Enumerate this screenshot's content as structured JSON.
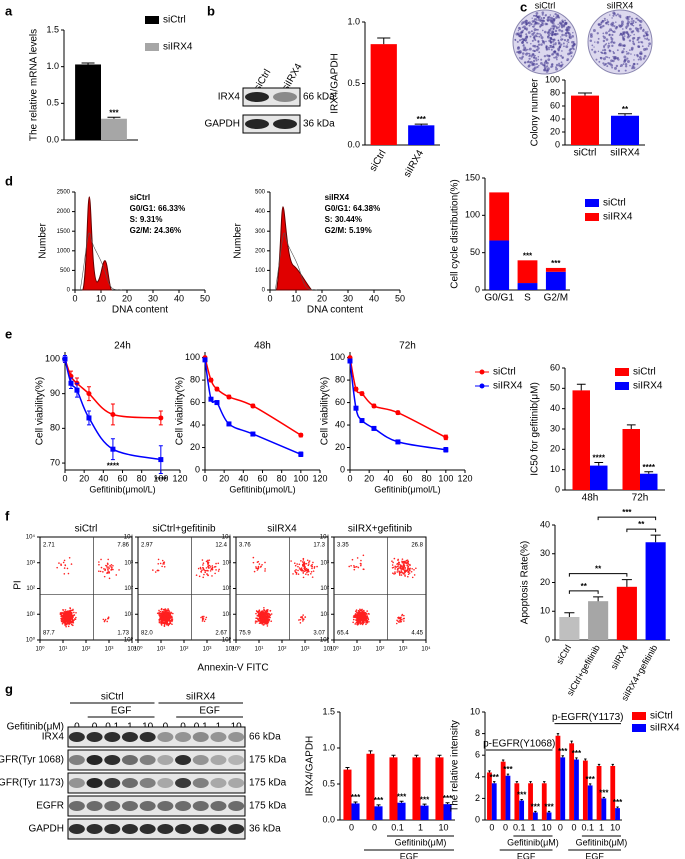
{
  "figure": {
    "panel_letters": [
      "a",
      "b",
      "c",
      "d",
      "e",
      "f",
      "g"
    ],
    "blot_b": {
      "lanes": [
        "siCtrl",
        "siIRX4"
      ],
      "rows": [
        {
          "name": "IRX4",
          "size": "66 kDa"
        },
        {
          "name": "GAPDH",
          "size": "36 kDa"
        }
      ]
    },
    "dishes": [
      "siCtrl",
      "siIRX4"
    ],
    "flow_axes": {
      "y": "PI",
      "x": "Annexin-V FITC"
    },
    "blot_g": {
      "groups": [
        "siCtrl",
        "siIRX4"
      ],
      "treatment": "EGF",
      "dose_label": "Gefitinib(μM)",
      "doses": [
        "0",
        "0",
        "0.1",
        "1",
        "10",
        "0",
        "0",
        "0.1",
        "1",
        "10"
      ],
      "rows": [
        {
          "name": "IRX4",
          "size": "66 kDa"
        },
        {
          "name": "p-EGFR(Tyr 1068)",
          "size": "175 kDa"
        },
        {
          "name": "p-EGFR(Tyr 1173)",
          "size": "175 kDa"
        },
        {
          "name": "EGFR",
          "size": "175 kDa"
        },
        {
          "name": "GAPDH",
          "size": "36 kDa"
        }
      ]
    }
  },
  "chart_data": [
    {
      "type": "bar",
      "ylabel": "The relative mRNA levels",
      "categories": [
        null
      ],
      "ylim": [
        0,
        1.5
      ],
      "yticks": [
        {
          "value": 0,
          "label": "0.0"
        },
        0.5,
        {
          "value": 1,
          "label": "1.0"
        },
        1.5
      ],
      "series": [
        {
          "name": "siCtrl",
          "color": "#000000",
          "values": [
            1.03
          ],
          "errors": [
            0.02
          ]
        },
        {
          "name": "siIRX4",
          "color": "#a6a6a6",
          "values": [
            0.29
          ],
          "errors": [
            0.02
          ],
          "annotations": [
            "***"
          ]
        }
      ]
    },
    {
      "type": "bar",
      "ylabel": "IRX4/GAPDH",
      "categories": [
        "siCtrl",
        "siIRX4"
      ],
      "ylim": [
        0,
        1
      ],
      "yticks": [
        {
          "value": 0,
          "label": "0.0"
        },
        0.5,
        {
          "value": 1,
          "label": "1.0"
        }
      ],
      "series": [
        {
          "colors": [
            "#ff0000",
            "#0000ff"
          ],
          "values": [
            0.82,
            0.16
          ],
          "errors": [
            0.05,
            0.01
          ],
          "annotations": [
            null,
            "***"
          ]
        }
      ]
    },
    {
      "type": "bar",
      "ylabel": "Colony number",
      "categories": [
        "siCtrl",
        "siIRX4"
      ],
      "ylim": [
        0,
        100
      ],
      "yticks": [
        0,
        20,
        40,
        60,
        80,
        100
      ],
      "series": [
        {
          "colors": [
            "#ff0000",
            "#0000ff"
          ],
          "values": [
            76,
            45
          ],
          "errors": [
            4,
            3
          ],
          "annotations": [
            null,
            "**"
          ]
        }
      ]
    },
    {
      "type": "flow_histogram",
      "ylabel": "Number",
      "xlabel": "DNA content",
      "xlim": [
        0,
        50
      ],
      "xticks": [
        0,
        10,
        20,
        30,
        40,
        50
      ],
      "ylim": [
        0,
        2500
      ],
      "yticks": [
        0,
        500,
        1000,
        1500,
        2000,
        2500
      ],
      "annotations": [
        "siCtrl",
        "G0/G1: 66.33%",
        "S: 9.31%",
        "G2/M: 24.36%"
      ]
    },
    {
      "type": "flow_histogram",
      "ylabel": "Number",
      "xlabel": "DNA content",
      "xlim": [
        0,
        50
      ],
      "xticks": [
        0,
        10,
        20,
        30,
        40,
        50
      ],
      "ylim": [
        0,
        500
      ],
      "yticks": [
        0,
        100,
        200,
        300,
        400,
        500
      ],
      "annotations": [
        "siIRX4",
        "G0/G1: 64.38%",
        "S: 30.44%",
        "G2/M: 5.19%"
      ]
    },
    {
      "type": "bar",
      "stacked": true,
      "ylabel": "Cell cycle distribution(%)",
      "categories": [
        "G0/G1",
        "S",
        "G2/M"
      ],
      "ylim": [
        0,
        150
      ],
      "yticks": [
        0,
        50,
        100,
        150
      ],
      "series": [
        {
          "name": "siCtrl",
          "color": "#0000ff",
          "values": [
            66.33,
            9.31,
            24.36
          ]
        },
        {
          "name": "siIRX4",
          "color": "#ff0000",
          "values": [
            64.38,
            30.44,
            5.19
          ],
          "annotations": [
            null,
            "***",
            "***"
          ]
        }
      ]
    },
    {
      "type": "line",
      "title": "24h",
      "xlabel": "Gefitinib(μmol/L)",
      "ylabel": "Cell viability(%)",
      "x": [
        0,
        6.25,
        12.5,
        25,
        50,
        100
      ],
      "xlim": [
        0,
        120
      ],
      "xticks": [
        0,
        20,
        40,
        60,
        80,
        100,
        120
      ],
      "ylim": [
        68,
        102
      ],
      "yticks": [
        70,
        80,
        90,
        100
      ],
      "series": [
        {
          "name": "siCtrl",
          "color": "#ff0000",
          "values": [
            100,
            95,
            93,
            90,
            84,
            83
          ],
          "errors": [
            1,
            1.5,
            1.5,
            2,
            3,
            2
          ]
        },
        {
          "name": "siIRX4",
          "color": "#0000ff",
          "values": [
            100,
            93,
            91,
            83,
            74,
            71
          ],
          "errors": [
            1,
            1.5,
            2,
            2,
            3,
            4
          ],
          "annotations": [
            null,
            null,
            null,
            null,
            "****",
            "****"
          ]
        }
      ]
    },
    {
      "type": "line",
      "title": "48h",
      "xlabel": "Gefitinib(μmol/L)",
      "ylabel": "Cell viability(%)",
      "x": [
        0,
        6.25,
        12.5,
        25,
        50,
        100
      ],
      "xlim": [
        0,
        120
      ],
      "xticks": [
        0,
        20,
        40,
        60,
        80,
        100,
        120
      ],
      "ylim": [
        0,
        105
      ],
      "yticks": [
        0,
        20,
        40,
        60,
        80,
        100
      ],
      "series": [
        {
          "name": "siCtrl",
          "color": "#ff0000",
          "values": [
            100,
            80,
            72,
            65,
            57,
            31
          ],
          "errors": [
            1,
            1.5,
            1.5,
            1.5,
            1.5,
            1.5
          ]
        },
        {
          "name": "siIRX4",
          "color": "#0000ff",
          "values": [
            98,
            63,
            60,
            41,
            32,
            14
          ],
          "errors": [
            1,
            1.5,
            1.5,
            1.5,
            1.5,
            2
          ]
        }
      ]
    },
    {
      "type": "line",
      "title": "72h",
      "xlabel": "Gefitinib(μmol/L)",
      "ylabel": "Cell viability(%)",
      "x": [
        0,
        6.25,
        12.5,
        25,
        50,
        100
      ],
      "xlim": [
        0,
        120
      ],
      "xticks": [
        0,
        20,
        40,
        60,
        80,
        100,
        120
      ],
      "ylim": [
        0,
        105
      ],
      "yticks": [
        0,
        20,
        40,
        60,
        80,
        100
      ],
      "series": [
        {
          "name": "siCtrl",
          "color": "#ff0000",
          "values": [
            100,
            72,
            68,
            57,
            51,
            29
          ],
          "errors": [
            1,
            1.5,
            1.5,
            1.5,
            1.5,
            2
          ]
        },
        {
          "name": "siIRX4",
          "color": "#0000ff",
          "values": [
            97,
            55,
            44,
            37,
            25,
            18
          ],
          "errors": [
            1,
            1.5,
            1.5,
            1.5,
            1.5,
            2
          ]
        }
      ]
    },
    {
      "type": "bar",
      "ylabel": "IC50 for gefitinib(μM)",
      "categories": [
        "48h",
        "72h"
      ],
      "ylim": [
        0,
        60
      ],
      "yticks": [
        0,
        10,
        20,
        30,
        40,
        50,
        60
      ],
      "series": [
        {
          "name": "siCtrl",
          "color": "#ff0000",
          "values": [
            49,
            30
          ],
          "errors": [
            3,
            2
          ]
        },
        {
          "name": "siIRX4",
          "color": "#0000ff",
          "values": [
            12,
            8
          ],
          "errors": [
            1.5,
            1
          ],
          "annotations": [
            "****",
            "****"
          ]
        }
      ]
    },
    {
      "type": "quadrant",
      "title": "siCtrl",
      "values": [
        2.71,
        7.86,
        87.7,
        1.73
      ],
      "value_labels": [
        "2.71",
        "7.86",
        "87.7",
        "1.73"
      ],
      "log": true,
      "xlim": [
        1,
        10000
      ],
      "xticks": [
        {
          "value": 1,
          "label": "10⁰"
        },
        {
          "value": 10,
          "label": "10¹"
        },
        {
          "value": 100,
          "label": "10²"
        },
        {
          "value": 1000,
          "label": "10³"
        },
        {
          "value": 10000,
          "label": "10⁴"
        }
      ],
      "ylim": [
        1,
        10000
      ],
      "yticks": [
        {
          "value": 1,
          "label": "10⁰"
        },
        {
          "value": 10,
          "label": "10¹"
        },
        {
          "value": 100,
          "label": "10²"
        },
        {
          "value": 1000,
          "label": "10³"
        },
        {
          "value": 10000,
          "label": "10⁴"
        }
      ]
    },
    {
      "type": "quadrant",
      "title": "siCtrl+gefitinib",
      "values": [
        2.97,
        12.4,
        82.0,
        2.67
      ],
      "value_labels": [
        "2.97",
        "12.4",
        "82.0",
        "2.67"
      ],
      "log": true,
      "xlim": [
        1,
        10000
      ],
      "xticks": [
        {
          "value": 1,
          "label": "10⁰"
        },
        {
          "value": 10,
          "label": "10¹"
        },
        {
          "value": 100,
          "label": "10²"
        },
        {
          "value": 1000,
          "label": "10³"
        },
        {
          "value": 10000,
          "label": "10⁴"
        }
      ],
      "ylim": [
        1,
        10000
      ],
      "yticks": [
        {
          "value": 1,
          "label": "10⁰"
        },
        {
          "value": 10,
          "label": "10¹"
        },
        {
          "value": 100,
          "label": "10²"
        },
        {
          "value": 1000,
          "label": "10³"
        },
        {
          "value": 10000,
          "label": "10⁴"
        }
      ]
    },
    {
      "type": "quadrant",
      "title": "siIRX4",
      "values": [
        3.76,
        17.3,
        75.9,
        3.07
      ],
      "value_labels": [
        "3.76",
        "17.3",
        "75.9",
        "3.07"
      ],
      "log": true,
      "xlim": [
        1,
        10000
      ],
      "xticks": [
        {
          "value": 1,
          "label": "10⁰"
        },
        {
          "value": 10,
          "label": "10¹"
        },
        {
          "value": 100,
          "label": "10²"
        },
        {
          "value": 1000,
          "label": "10³"
        },
        {
          "value": 10000,
          "label": "10⁴"
        }
      ],
      "ylim": [
        1,
        10000
      ],
      "yticks": [
        {
          "value": 1,
          "label": "10⁰"
        },
        {
          "value": 10,
          "label": "10¹"
        },
        {
          "value": 100,
          "label": "10²"
        },
        {
          "value": 1000,
          "label": "10³"
        },
        {
          "value": 10000,
          "label": "10⁴"
        }
      ]
    },
    {
      "type": "quadrant",
      "title": "siIRX+gefitinib",
      "values": [
        3.35,
        26.8,
        65.4,
        4.45
      ],
      "value_labels": [
        "3.35",
        "26.8",
        "65.4",
        "4.45"
      ],
      "log": true,
      "xlim": [
        1,
        10000
      ],
      "xticks": [
        {
          "value": 1,
          "label": "10⁰"
        },
        {
          "value": 10,
          "label": "10¹"
        },
        {
          "value": 100,
          "label": "10²"
        },
        {
          "value": 1000,
          "label": "10³"
        },
        {
          "value": 10000,
          "label": "10⁴"
        }
      ],
      "ylim": [
        1,
        10000
      ],
      "yticks": [
        {
          "value": 1,
          "label": "10⁰"
        },
        {
          "value": 10,
          "label": "10¹"
        },
        {
          "value": 100,
          "label": "10²"
        },
        {
          "value": 1000,
          "label": "10³"
        },
        {
          "value": 10000,
          "label": "10⁴"
        }
      ]
    },
    {
      "type": "bar",
      "ylabel": "Apoptosis Rate(%)",
      "categories": [
        "siCtrl",
        "siCtrl+gefitinib",
        "siIRX4",
        "siIRX4+gefitinib"
      ],
      "ylim": [
        0,
        40
      ],
      "yticks": [
        0,
        10,
        20,
        30,
        40
      ],
      "series": [
        {
          "colors": [
            "#bfbfbf",
            "#a6a6a6",
            "#ff0000",
            "#0000ff"
          ],
          "values": [
            8,
            13.5,
            18.5,
            34
          ],
          "errors": [
            1.5,
            1.5,
            2.5,
            2.5
          ]
        }
      ],
      "comparisons": [
        {
          "pair": [
            0,
            1
          ],
          "label": "**"
        },
        {
          "pair": [
            0,
            2
          ],
          "label": "**"
        },
        {
          "pair": [
            2,
            3
          ],
          "label": "**"
        },
        {
          "pair": [
            1,
            3
          ],
          "label": "***"
        }
      ]
    },
    {
      "type": "bar",
      "ylabel": "IRX4/GAPDH",
      "categories": [
        "0",
        "0",
        "0.1",
        "1",
        "10"
      ],
      "ylim": [
        0,
        1.5
      ],
      "yticks": [
        {
          "value": 0,
          "label": "0.0"
        },
        0.5,
        {
          "value": 1,
          "label": "1.0"
        },
        1.5
      ],
      "sublabels": [
        "Gefitinib(μM)",
        "EGF"
      ],
      "series": [
        {
          "name": "siCtrl",
          "color": "#ff0000",
          "values": [
            0.7,
            0.92,
            0.87,
            0.87,
            0.87
          ],
          "errors": [
            0.03,
            0.04,
            0.03,
            0.03,
            0.03
          ]
        },
        {
          "name": "siIRX4",
          "color": "#0000ff",
          "values": [
            0.23,
            0.19,
            0.24,
            0.2,
            0.22
          ],
          "errors": [
            0.02,
            0.02,
            0.02,
            0.02,
            0.02
          ],
          "annotations": [
            "***",
            "***",
            "***",
            "***",
            "***"
          ]
        }
      ]
    },
    {
      "type": "bar",
      "ylabel": "The relative intensity",
      "categories": [
        "0",
        "0",
        "0.1",
        "1",
        "10",
        "0",
        "0",
        "0.1",
        "1",
        "10"
      ],
      "ylim": [
        0,
        10
      ],
      "yticks": [
        0,
        2,
        4,
        6,
        8,
        10
      ],
      "groups": [
        {
          "header": "p-EGFR(Y1068)",
          "sublabels": [
            "Gefitinib(μM)",
            "EGF"
          ]
        },
        {
          "header": "p-EGFR(Y1173)",
          "sublabels": [
            "Gefitinib(μM)",
            "EGF"
          ]
        }
      ],
      "series": [
        {
          "name": "siCtrl",
          "color": "#ff0000",
          "values": [
            4.4,
            5.4,
            3.4,
            3.4,
            3.4,
            7.8,
            7.1,
            5.5,
            5.0,
            5.0
          ],
          "errors": [
            0.15,
            0.15,
            0.15,
            0.15,
            0.15,
            0.2,
            0.2,
            0.15,
            0.15,
            0.15
          ]
        },
        {
          "name": "siIRX4",
          "color": "#0000ff",
          "values": [
            3.4,
            4.1,
            1.8,
            0.7,
            0.7,
            5.8,
            5.6,
            3.2,
            2.0,
            1.1
          ],
          "errors": [
            0.15,
            0.15,
            0.1,
            0.1,
            0.1,
            0.15,
            0.15,
            0.15,
            0.1,
            0.1
          ],
          "annotations": [
            "***",
            "***",
            "***",
            "***",
            "***",
            "***",
            "***",
            "***",
            "***",
            "***"
          ]
        }
      ]
    }
  ]
}
